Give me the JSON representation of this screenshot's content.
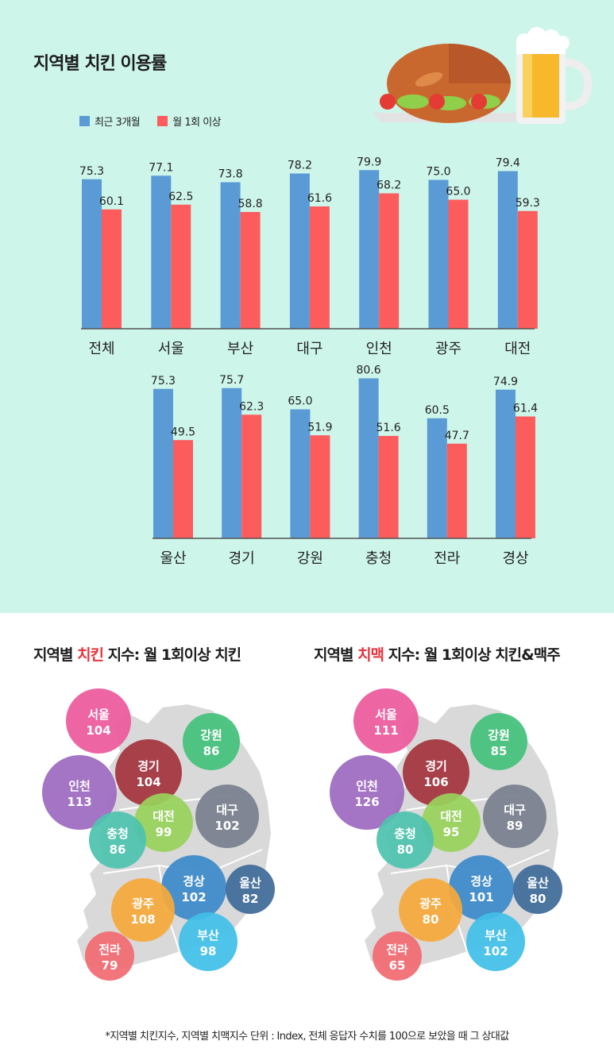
{
  "title": "지역별 치킨 이용률",
  "colors": {
    "recent": "#5b9bd5",
    "monthly": "#fd5c5d"
  },
  "chart_data": [
    {
      "type": "bar",
      "categories": [
        "전체",
        "서울",
        "부산",
        "대구",
        "인천",
        "광주",
        "대전"
      ],
      "series": [
        {
          "name": "최근 3개월",
          "values": [
            75.3,
            77.1,
            73.8,
            78.2,
            79.9,
            75.0,
            79.4
          ]
        },
        {
          "name": "월 1회 이상",
          "values": [
            60.1,
            62.5,
            58.8,
            61.6,
            68.2,
            65.0,
            59.3
          ]
        }
      ],
      "ylim": [
        0,
        80
      ],
      "legend": "top-left"
    },
    {
      "type": "bar",
      "categories": [
        "울산",
        "경기",
        "강원",
        "충청",
        "전라",
        "경상"
      ],
      "series": [
        {
          "name": "최근 3개월",
          "values": [
            75.3,
            75.7,
            65.0,
            80.6,
            60.5,
            74.9
          ]
        },
        {
          "name": "월 1회 이상",
          "values": [
            49.5,
            62.3,
            51.9,
            51.6,
            47.7,
            61.4
          ]
        }
      ],
      "ylim": [
        0,
        80
      ]
    }
  ],
  "maps": [
    {
      "title_prefix": "지역별 ",
      "title_highlight": "치킨",
      "title_suffix": " 지수: 월 1회이상 치킨",
      "regions": [
        {
          "name": "서울",
          "value": 104,
          "color": "#ec5a9c"
        },
        {
          "name": "강원",
          "value": 86,
          "color": "#44c17b"
        },
        {
          "name": "경기",
          "value": 104,
          "color": "#a3343d"
        },
        {
          "name": "인천",
          "value": 113,
          "color": "#9d6ac0"
        },
        {
          "name": "대구",
          "value": 102,
          "color": "#787f8d"
        },
        {
          "name": "대전",
          "value": 99,
          "color": "#98d25a"
        },
        {
          "name": "충청",
          "value": 86,
          "color": "#4dc3ae"
        },
        {
          "name": "경상",
          "value": 102,
          "color": "#3c8ac9"
        },
        {
          "name": "울산",
          "value": 82,
          "color": "#3e6b99"
        },
        {
          "name": "광주",
          "value": 108,
          "color": "#f5a93a"
        },
        {
          "name": "부산",
          "value": 98,
          "color": "#42c0e8"
        },
        {
          "name": "전라",
          "value": 79,
          "color": "#f26b72"
        }
      ]
    },
    {
      "title_prefix": "지역별 ",
      "title_highlight": "치맥",
      "title_suffix": " 지수: 월 1회이상 치킨&맥주",
      "regions": [
        {
          "name": "서울",
          "value": 111,
          "color": "#ec5a9c"
        },
        {
          "name": "강원",
          "value": 85,
          "color": "#44c17b"
        },
        {
          "name": "경기",
          "value": 106,
          "color": "#a3343d"
        },
        {
          "name": "인천",
          "value": 126,
          "color": "#9d6ac0"
        },
        {
          "name": "대구",
          "value": 89,
          "color": "#787f8d"
        },
        {
          "name": "대전",
          "value": 95,
          "color": "#98d25a"
        },
        {
          "name": "충청",
          "value": 80,
          "color": "#4dc3ae"
        },
        {
          "name": "경상",
          "value": 101,
          "color": "#3c8ac9"
        },
        {
          "name": "울산",
          "value": 80,
          "color": "#3e6b99"
        },
        {
          "name": "광주",
          "value": 80,
          "color": "#f5a93a"
        },
        {
          "name": "부산",
          "value": 102,
          "color": "#42c0e8"
        },
        {
          "name": "전라",
          "value": 65,
          "color": "#f26b72"
        }
      ]
    }
  ],
  "footnote": "*지역별 치킨지수, 지역별 치맥지수 단위 : Index, 전체 응답자 수치를 100으로 보았을 때 그 상대값"
}
